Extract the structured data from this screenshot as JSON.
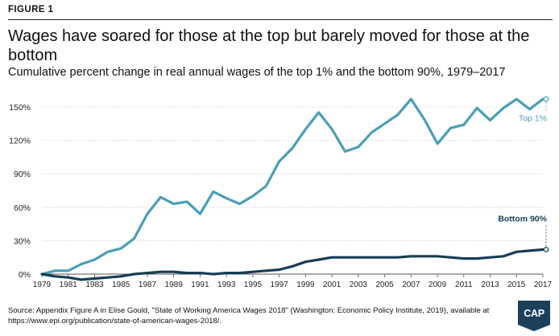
{
  "figure_label": "FIGURE 1",
  "title": "Wages have soared for those at the top but barely moved for those at the bottom",
  "subtitle": "Cumulative percent change in real annual wages of the top 1% and the bottom 90%, 1979–2017",
  "source": "Source: Appendix Figure A in Elise Gould, \"State of Working America Wages 2018\" (Washington: Economic Policy Institute, 2019), available at https://www.epi.org/publication/state-of-american-wages-2018/.",
  "logo_text": "CAP",
  "colors": {
    "top_series": "#4a9fb5",
    "bottom_series": "#163e55",
    "grid": "#cfcfcf",
    "logo_bg": "#1c3f5a"
  },
  "chart_data": {
    "type": "line",
    "ylim": [
      0,
      160
    ],
    "xlim": [
      1979,
      2017
    ],
    "y_ticks": [
      0,
      30,
      60,
      90,
      120,
      150
    ],
    "y_tick_labels": [
      "0%",
      "30%",
      "60%",
      "90%",
      "120%",
      "150%"
    ],
    "x_tick_labels": [
      "1979",
      "1981",
      "1983",
      "1985",
      "1987",
      "1989",
      "1991",
      "1993",
      "1995",
      "1997",
      "1999",
      "2001",
      "2003",
      "2005",
      "2007",
      "2009",
      "2011",
      "2013",
      "2015",
      "2017"
    ],
    "grid": true,
    "series": [
      {
        "name": "Top 1%",
        "x": [
          1979,
          1980,
          1981,
          1982,
          1983,
          1984,
          1985,
          1986,
          1987,
          1988,
          1989,
          1990,
          1991,
          1992,
          1993,
          1994,
          1995,
          1996,
          1997,
          1998,
          1999,
          2000,
          2001,
          2002,
          2003,
          2004,
          2005,
          2006,
          2007,
          2008,
          2009,
          2010,
          2011,
          2012,
          2013,
          2014,
          2015,
          2016,
          2017
        ],
        "values": [
          0,
          3,
          3,
          9,
          13,
          20,
          23,
          32,
          54,
          69,
          63,
          65,
          54,
          74,
          68,
          63,
          70,
          79,
          101,
          113,
          130,
          145,
          130,
          110,
          114,
          127,
          135,
          143,
          157,
          139,
          117,
          131,
          134,
          149,
          138,
          149,
          157,
          148,
          157
        ]
      },
      {
        "name": "Bottom 90%",
        "x": [
          1979,
          1980,
          1981,
          1982,
          1983,
          1984,
          1985,
          1986,
          1987,
          1988,
          1989,
          1990,
          1991,
          1992,
          1993,
          1994,
          1995,
          1996,
          1997,
          1998,
          1999,
          2000,
          2001,
          2002,
          2003,
          2004,
          2005,
          2006,
          2007,
          2008,
          2009,
          2010,
          2011,
          2012,
          2013,
          2014,
          2015,
          2016,
          2017
        ],
        "values": [
          0,
          -2,
          -3,
          -5,
          -4,
          -3,
          -2,
          0,
          1,
          2,
          2,
          1,
          1,
          0,
          1,
          1,
          2,
          3,
          4,
          7,
          11,
          13,
          15,
          15,
          15,
          15,
          15,
          15,
          16,
          16,
          16,
          15,
          14,
          14,
          15,
          16,
          20,
          21,
          22
        ]
      }
    ]
  }
}
